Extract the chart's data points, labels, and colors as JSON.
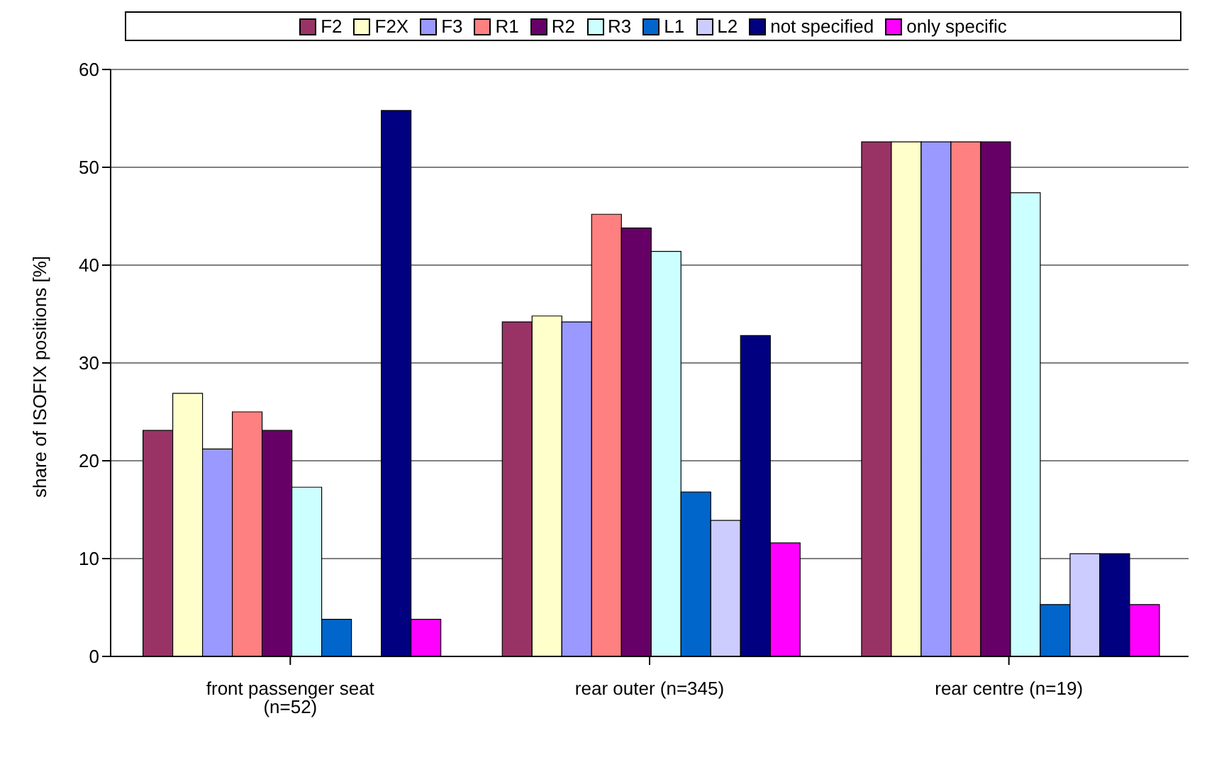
{
  "chart_data": {
    "type": "bar",
    "ylabel": "share of ISOFIX positions [%]",
    "categories": [
      "front passenger seat (n=52)",
      "rear outer (n=345)",
      "rear centre (n=19)"
    ],
    "series": [
      {
        "name": "F2",
        "color": "#993366",
        "values": [
          23.1,
          34.2,
          52.6
        ]
      },
      {
        "name": "F2X",
        "color": "#ffffcc",
        "values": [
          26.9,
          34.8,
          52.6
        ]
      },
      {
        "name": "F3",
        "color": "#9999ff",
        "values": [
          21.2,
          34.2,
          52.6
        ]
      },
      {
        "name": "R1",
        "color": "#ff8080",
        "values": [
          25.0,
          45.2,
          52.6
        ]
      },
      {
        "name": "R2",
        "color": "#660066",
        "values": [
          23.1,
          43.8,
          52.6
        ]
      },
      {
        "name": "R3",
        "color": "#ccffff",
        "values": [
          17.3,
          41.4,
          47.4
        ]
      },
      {
        "name": "L1",
        "color": "#0066cc",
        "values": [
          3.8,
          16.8,
          5.3
        ]
      },
      {
        "name": "L2",
        "color": "#ccccff",
        "values": [
          0,
          13.9,
          10.5
        ]
      },
      {
        "name": "not specified",
        "color": "#000080",
        "values": [
          55.8,
          32.8,
          10.5
        ]
      },
      {
        "name": "only specific",
        "color": "#ff00ff",
        "values": [
          3.8,
          11.6,
          5.3
        ]
      }
    ],
    "ylim": [
      0,
      60
    ],
    "yticks": [
      0,
      10,
      20,
      30,
      40,
      50,
      60
    ],
    "grid": "y",
    "legend": "top"
  }
}
